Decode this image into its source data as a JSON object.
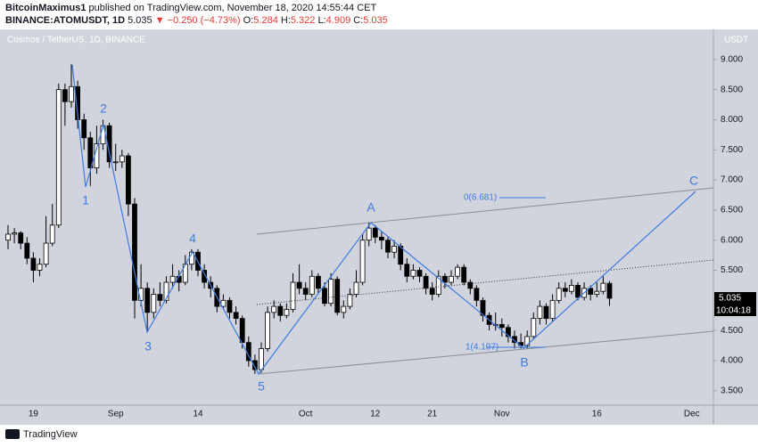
{
  "header": {
    "author": "BitcoinMaximus1",
    "published": "published on TradingView.com, November 18, 2020 14:55:44 CET",
    "symbol": "BINANCE:ATOMUSDT, 1D",
    "last": "5.035",
    "change": "▼ −0.250 (−4.73%)",
    "o_label": "O:",
    "o": "5.284",
    "h_label": "H:",
    "h": "5.322",
    "l_label": "L:",
    "l": "4.909",
    "c_label": "C:",
    "c": "5.035"
  },
  "footer": {
    "brand": "TradingView"
  },
  "chart_data": {
    "type": "candlestick",
    "title": "Cosmos / TetherUS, 1D, BINANCE",
    "y_unit": "USDT",
    "up_color": "#ffffff",
    "down_color": "#000000",
    "outline_color": "#000000",
    "countdown": "10:04:18",
    "annotations": [
      "1",
      "2",
      "3",
      "4",
      "5",
      "A",
      "B",
      "C",
      "0(6.681)",
      "1(4.197)"
    ],
    "ylim": [
      3.26,
      9.5
    ],
    "yticks": [
      {
        "value": 9,
        "label": "9.000"
      },
      {
        "value": 8.5,
        "label": "8.500"
      },
      {
        "value": 8,
        "label": "8.000"
      },
      {
        "value": 7.5,
        "label": "7.500"
      },
      {
        "value": 7,
        "label": "7.000"
      },
      {
        "value": 6.5,
        "label": "6.500"
      },
      {
        "value": 6,
        "label": "6.000"
      },
      {
        "value": 5.5,
        "label": "5.500"
      },
      {
        "value": 5,
        "label": "5.000"
      },
      {
        "value": 4.5,
        "label": "4.500"
      },
      {
        "value": 4,
        "label": "4.000"
      },
      {
        "value": 3.5,
        "label": "3.500"
      }
    ],
    "categories": [
      null,
      null,
      null,
      null,
      "19",
      null,
      null,
      null,
      null,
      null,
      null,
      null,
      null,
      null,
      null,
      null,
      null,
      "Sep",
      null,
      null,
      null,
      null,
      null,
      null,
      null,
      null,
      null,
      null,
      null,
      null,
      "14",
      null,
      null,
      null,
      null,
      null,
      null,
      null,
      null,
      null,
      null,
      null,
      null,
      null,
      null,
      null,
      null,
      "Oct",
      null,
      null,
      null,
      null,
      null,
      null,
      null,
      null,
      null,
      null,
      "12",
      null,
      null,
      null,
      null,
      null,
      null,
      null,
      null,
      "21",
      null,
      null,
      null,
      null,
      null,
      null,
      null,
      null,
      null,
      null,
      "Nov",
      null,
      null,
      null,
      null,
      null,
      null,
      null,
      null,
      null,
      null,
      null,
      null,
      null,
      null,
      "16",
      null,
      null,
      null,
      null,
      null,
      null,
      null,
      null,
      null,
      null,
      null,
      null,
      null,
      null,
      "Dec"
    ],
    "ohlc": [
      [
        6.0,
        6.25,
        5.85,
        6.1
      ],
      [
        6.1,
        6.2,
        5.95,
        6.12
      ],
      [
        6.12,
        6.15,
        5.85,
        5.95
      ],
      [
        5.95,
        6.05,
        5.6,
        5.7
      ],
      [
        5.7,
        5.8,
        5.3,
        5.5
      ],
      [
        5.5,
        5.7,
        5.4,
        5.6
      ],
      [
        5.6,
        6.4,
        5.55,
        5.95
      ],
      [
        5.95,
        6.6,
        5.9,
        6.25
      ],
      [
        6.25,
        8.6,
        6.2,
        8.5
      ],
      [
        8.5,
        8.6,
        7.9,
        8.3
      ],
      [
        8.3,
        8.92,
        8.2,
        8.55
      ],
      [
        8.55,
        8.65,
        7.85,
        8.0
      ],
      [
        8.0,
        8.1,
        7.5,
        7.7
      ],
      [
        7.7,
        7.8,
        6.9,
        7.2
      ],
      [
        7.2,
        7.9,
        7.1,
        7.6
      ],
      [
        7.6,
        8.0,
        7.5,
        7.9
      ],
      [
        7.9,
        7.95,
        7.2,
        7.3
      ],
      [
        7.3,
        7.6,
        7.15,
        7.3
      ],
      [
        7.3,
        7.5,
        7.2,
        7.4
      ],
      [
        7.4,
        7.45,
        6.4,
        6.6
      ],
      [
        6.6,
        6.7,
        4.7,
        5.0
      ],
      [
        5.0,
        5.6,
        4.9,
        5.2
      ],
      [
        5.2,
        5.3,
        4.5,
        4.8
      ],
      [
        4.8,
        5.2,
        4.7,
        5.1
      ],
      [
        5.1,
        5.3,
        4.9,
        5.0
      ],
      [
        5.0,
        5.4,
        4.95,
        5.3
      ],
      [
        5.3,
        5.6,
        5.2,
        5.4
      ],
      [
        5.4,
        5.5,
        5.15,
        5.3
      ],
      [
        5.3,
        5.75,
        5.25,
        5.6
      ],
      [
        5.6,
        5.85,
        5.5,
        5.8
      ],
      [
        5.8,
        5.85,
        5.4,
        5.5
      ],
      [
        5.5,
        5.6,
        5.2,
        5.3
      ],
      [
        5.3,
        5.4,
        5.05,
        5.2
      ],
      [
        5.2,
        5.25,
        4.8,
        4.9
      ],
      [
        4.9,
        5.1,
        4.85,
        5.0
      ],
      [
        5.0,
        5.05,
        4.7,
        4.8
      ],
      [
        4.8,
        4.9,
        4.6,
        4.7
      ],
      [
        4.7,
        4.75,
        4.2,
        4.3
      ],
      [
        4.3,
        4.4,
        3.9,
        4.0
      ],
      [
        4.0,
        4.1,
        3.78,
        3.85
      ],
      [
        3.85,
        4.3,
        3.8,
        4.2
      ],
      [
        4.2,
        4.9,
        4.15,
        4.8
      ],
      [
        4.8,
        5.0,
        4.7,
        4.9
      ],
      [
        4.9,
        4.95,
        4.65,
        4.75
      ],
      [
        4.75,
        4.95,
        4.7,
        4.85
      ],
      [
        4.85,
        5.45,
        4.8,
        5.3
      ],
      [
        5.3,
        5.6,
        5.1,
        5.2
      ],
      [
        5.2,
        5.3,
        5.0,
        5.1
      ],
      [
        5.1,
        5.5,
        5.05,
        5.4
      ],
      [
        5.4,
        5.45,
        5.1,
        5.2
      ],
      [
        5.2,
        5.3,
        4.9,
        4.95
      ],
      [
        4.95,
        5.45,
        4.9,
        5.35
      ],
      [
        5.35,
        5.4,
        4.75,
        4.8
      ],
      [
        4.8,
        5.0,
        4.7,
        4.9
      ],
      [
        4.9,
        5.2,
        4.85,
        5.1
      ],
      [
        5.1,
        5.5,
        5.05,
        5.3
      ],
      [
        5.3,
        6.1,
        5.25,
        6.0
      ],
      [
        6.0,
        6.3,
        5.9,
        6.2
      ],
      [
        6.2,
        6.25,
        5.95,
        6.05
      ],
      [
        6.05,
        6.15,
        5.85,
        6.0
      ],
      [
        6.0,
        6.05,
        5.7,
        5.8
      ],
      [
        5.8,
        6.0,
        5.7,
        5.9
      ],
      [
        5.9,
        5.95,
        5.5,
        5.6
      ],
      [
        5.6,
        5.7,
        5.3,
        5.4
      ],
      [
        5.4,
        5.6,
        5.35,
        5.5
      ],
      [
        5.5,
        5.55,
        5.3,
        5.4
      ],
      [
        5.4,
        5.45,
        5.1,
        5.2
      ],
      [
        5.2,
        5.3,
        5.0,
        5.1
      ],
      [
        5.1,
        5.5,
        5.05,
        5.4
      ],
      [
        5.4,
        5.45,
        5.2,
        5.3
      ],
      [
        5.3,
        5.5,
        5.25,
        5.4
      ],
      [
        5.4,
        5.6,
        5.35,
        5.55
      ],
      [
        5.55,
        5.6,
        5.25,
        5.3
      ],
      [
        5.3,
        5.35,
        5.1,
        5.2
      ],
      [
        5.2,
        5.25,
        4.9,
        5.0
      ],
      [
        5.0,
        5.05,
        4.65,
        4.75
      ],
      [
        4.75,
        4.8,
        4.5,
        4.6
      ],
      [
        4.6,
        4.8,
        4.5,
        4.6
      ],
      [
        4.6,
        4.7,
        4.4,
        4.55
      ],
      [
        4.55,
        4.6,
        4.3,
        4.4
      ],
      [
        4.4,
        4.5,
        4.2,
        4.3
      ],
      [
        4.3,
        4.45,
        4.2,
        4.25
      ],
      [
        4.25,
        4.5,
        4.2,
        4.4
      ],
      [
        4.4,
        4.8,
        4.35,
        4.7
      ],
      [
        4.7,
        5.0,
        4.6,
        4.9
      ],
      [
        4.9,
        4.95,
        4.6,
        4.7
      ],
      [
        4.7,
        5.1,
        4.65,
        5.0
      ],
      [
        5.0,
        5.3,
        4.95,
        5.2
      ],
      [
        5.2,
        5.3,
        5.05,
        5.15
      ],
      [
        5.15,
        5.35,
        5.1,
        5.25
      ],
      [
        5.25,
        5.3,
        5.0,
        5.05
      ],
      [
        5.05,
        5.3,
        5.0,
        5.2
      ],
      [
        5.2,
        5.25,
        5.0,
        5.1
      ],
      [
        5.1,
        5.3,
        5.05,
        5.15
      ],
      [
        5.15,
        5.4,
        5.1,
        5.284
      ],
      [
        5.284,
        5.322,
        4.909,
        5.035
      ],
      null,
      null,
      null,
      null,
      null,
      null,
      null,
      null,
      null,
      null,
      null,
      null,
      null
    ]
  }
}
